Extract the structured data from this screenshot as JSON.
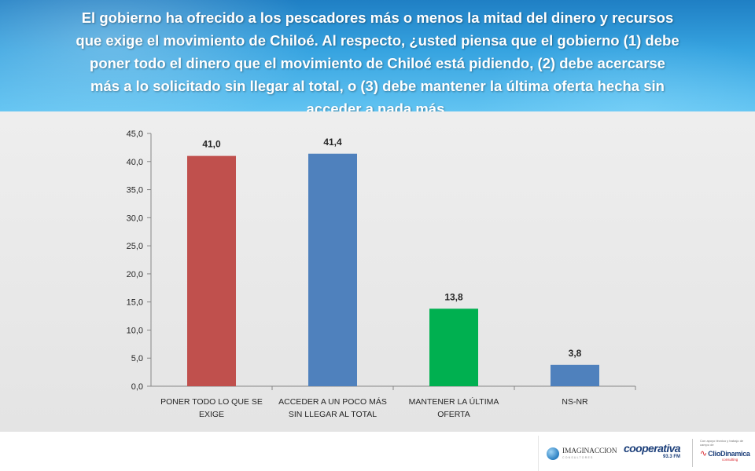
{
  "header": {
    "question_lines": [
      "El gobierno ha ofrecido a los pescadores más o menos la mitad del dinero y recursos",
      "que exige el movimiento de Chiloé. Al respecto, ¿usted piensa que el gobierno (1) debe",
      "poner todo el dinero que el movimiento de Chiloé está pidiendo, (2) debe acercarse",
      "más a lo solicitado sin llegar al total, o (3) debe mantener la última oferta hecha sin",
      "acceder a nada más."
    ]
  },
  "chart_data": {
    "type": "bar",
    "categories": [
      [
        "PONER TODO LO QUE SE",
        "EXIGE"
      ],
      [
        "ACCEDER A UN POCO MÁS",
        "SIN LLEGAR AL TOTAL"
      ],
      [
        "MANTENER LA ÚLTIMA",
        "OFERTA"
      ],
      [
        "NS-NR"
      ]
    ],
    "values": [
      41.0,
      41.4,
      13.8,
      3.8
    ],
    "data_labels": [
      "41,0",
      "41,4",
      "13,8",
      "3,8"
    ],
    "bar_colors": [
      "#c0504d",
      "#4f81bd",
      "#00b050",
      "#4f81bd"
    ],
    "ylim": [
      0,
      45
    ],
    "yticks": [
      "0,0",
      "5,0",
      "10,0",
      "15,0",
      "20,0",
      "25,0",
      "30,0",
      "35,0",
      "40,0",
      "45,0"
    ],
    "grid": false,
    "title": "",
    "xlabel": "",
    "ylabel": ""
  },
  "logos": {
    "imaginacion": {
      "name": "IMAGINACCION",
      "sub": "CONSULTORES"
    },
    "cooperativa": {
      "name": "cooperativa",
      "freq": "93.3 FM"
    },
    "cliodinamica": {
      "apoyo": "Con apoyo técnico y trabajo de campo de",
      "name": "ClioDinamica",
      "sub": "consulting"
    }
  }
}
